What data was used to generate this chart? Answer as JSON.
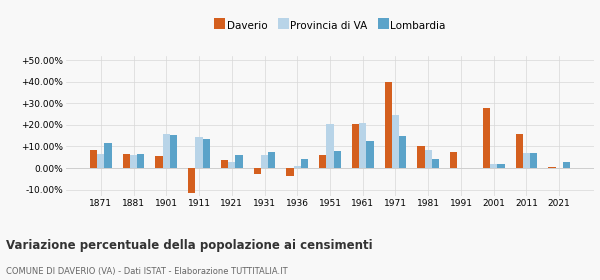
{
  "years": [
    1871,
    1881,
    1901,
    1911,
    1921,
    1931,
    1936,
    1951,
    1961,
    1971,
    1981,
    1991,
    2001,
    2011,
    2021
  ],
  "daverio": [
    8.5,
    6.5,
    5.5,
    -11.5,
    3.5,
    -3.0,
    -3.5,
    6.0,
    20.5,
    40.0,
    10.0,
    7.5,
    28.0,
    16.0,
    0.5
  ],
  "provincia": [
    6.5,
    6.0,
    16.0,
    14.5,
    3.0,
    6.0,
    1.0,
    20.5,
    21.0,
    24.5,
    8.5,
    0.0,
    2.0,
    7.0,
    0.0
  ],
  "lombardia": [
    11.5,
    6.5,
    15.5,
    13.5,
    6.0,
    7.5,
    4.0,
    8.0,
    12.5,
    15.0,
    4.0,
    0.0,
    2.0,
    7.0,
    3.0
  ],
  "color_daverio": "#d45f1e",
  "color_provincia": "#b8d4e8",
  "color_lombardia": "#5ba3c9",
  "title": "Variazione percentuale della popolazione ai censimenti",
  "subtitle": "COMUNE DI DAVERIO (VA) - Dati ISTAT - Elaborazione TUTTITALIA.IT",
  "ylim": [
    -13,
    52
  ],
  "yticks": [
    -10,
    0,
    10,
    20,
    30,
    40,
    50
  ],
  "legend_labels": [
    "Daverio",
    "Provincia di VA",
    "Lombardia"
  ],
  "background_color": "#f8f8f8"
}
